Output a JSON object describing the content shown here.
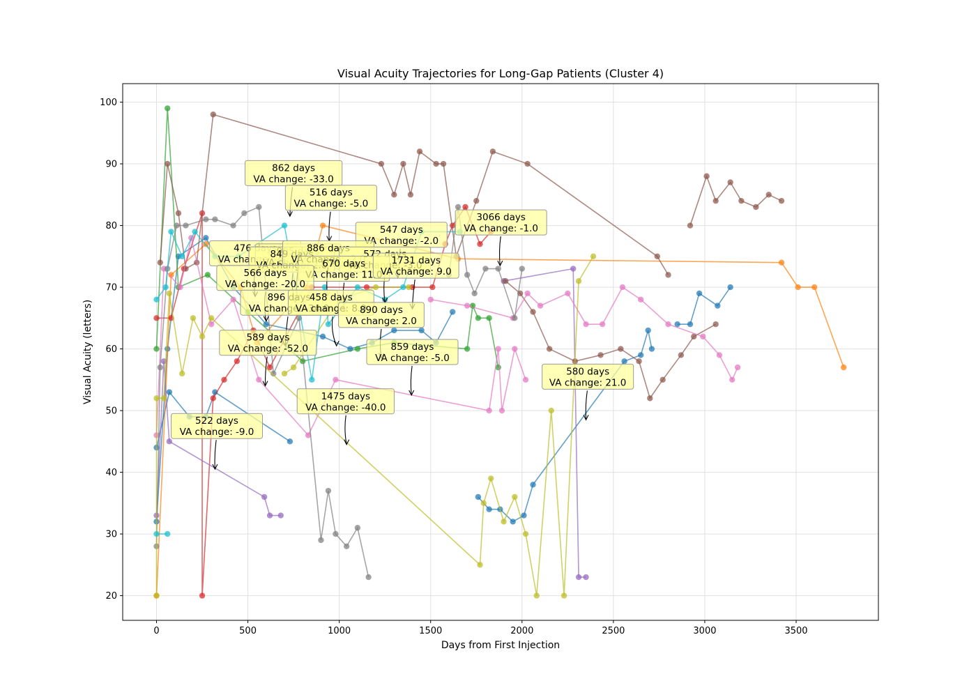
{
  "chart_data": {
    "type": "line",
    "title": "Visual Acuity Trajectories for Long-Gap Patients (Cluster 4)",
    "xlabel": "Days from First Injection",
    "ylabel": "Visual Acuity (letters)",
    "xlim": [
      -185,
      3950
    ],
    "ylim": [
      16,
      103
    ],
    "x_ticks": [
      0,
      500,
      1000,
      1500,
      2000,
      2500,
      3000,
      3500
    ],
    "y_ticks": [
      20,
      30,
      40,
      50,
      60,
      70,
      80,
      90,
      100
    ],
    "grid": true,
    "colors": [
      "#1f77b4",
      "#ff7f0e",
      "#2ca02c",
      "#d62728",
      "#9467bd",
      "#8c564b",
      "#e377c2",
      "#7f7f7f",
      "#bcbd22",
      "#17becf"
    ],
    "annotation_style": {
      "box_fill": "#ffff99",
      "box_stroke": "#999999"
    },
    "series": [
      {
        "color": "#1f77b4",
        "points": [
          [
            0,
            44
          ],
          [
            70,
            53
          ],
          [
            180,
            49
          ],
          [
            270,
            49
          ],
          [
            320,
            53
          ],
          [
            730,
            45
          ]
        ]
      },
      {
        "color": "#1f77b4",
        "points": [
          [
            0,
            32
          ],
          [
            60,
            60
          ],
          [
            120,
            75
          ],
          [
            270,
            78
          ],
          [
            420,
            70
          ],
          [
            600,
            64
          ],
          [
            910,
            62
          ],
          [
            1060,
            60
          ],
          [
            1180,
            61
          ],
          [
            1300,
            63
          ],
          [
            1450,
            63
          ],
          [
            1530,
            61
          ],
          [
            1620,
            66
          ]
        ]
      },
      {
        "color": "#1f77b4",
        "points": [
          [
            1760,
            36
          ],
          [
            1820,
            34
          ],
          [
            1880,
            34
          ],
          [
            1950,
            32
          ],
          [
            2010,
            33
          ],
          [
            2060,
            38
          ],
          [
            2560,
            58
          ],
          [
            2650,
            59
          ],
          [
            2690,
            63
          ],
          [
            2710,
            60
          ]
        ]
      },
      {
        "color": "#1f77b4",
        "points": [
          [
            2850,
            64
          ],
          [
            2920,
            64
          ],
          [
            2970,
            69
          ],
          [
            3070,
            67
          ],
          [
            3140,
            70
          ]
        ]
      },
      {
        "color": "#ff7f0e",
        "points": [
          [
            0,
            20
          ],
          [
            80,
            72
          ],
          [
            270,
            77
          ],
          [
            460,
            70
          ],
          [
            550,
            61
          ],
          [
            820,
            70
          ],
          [
            910,
            80
          ],
          [
            1650,
            74.6
          ],
          [
            3420,
            74
          ],
          [
            3510,
            70
          ],
          [
            3600,
            70
          ],
          [
            3760,
            57
          ]
        ]
      },
      {
        "color": "#2ca02c",
        "points": [
          [
            0,
            60
          ],
          [
            60,
            99
          ],
          [
            120,
            70
          ],
          [
            280,
            72
          ],
          [
            500,
            66
          ],
          [
            800,
            58
          ],
          [
            1100,
            60
          ],
          [
            1300,
            61
          ],
          [
            1700,
            60
          ],
          [
            1730,
            67
          ],
          [
            1760,
            65
          ],
          [
            1820,
            65
          ],
          [
            1870,
            57
          ]
        ]
      },
      {
        "color": "#d62728",
        "points": [
          [
            0,
            65
          ],
          [
            80,
            65
          ],
          [
            150,
            73
          ],
          [
            250,
            82
          ],
          [
            250,
            20
          ],
          [
            310,
            52
          ],
          [
            370,
            55
          ],
          [
            440,
            58
          ],
          [
            530,
            63
          ],
          [
            620,
            57
          ],
          [
            850,
            70
          ],
          [
            1150,
            70
          ],
          [
            1400,
            70
          ],
          [
            1510,
            70
          ],
          [
            1580,
            77
          ],
          [
            1620,
            80
          ],
          [
            1690,
            83
          ],
          [
            1770,
            77
          ],
          [
            1830,
            79
          ]
        ]
      },
      {
        "color": "#9467bd",
        "points": [
          [
            0,
            33
          ],
          [
            40,
            58
          ],
          [
            70,
            45
          ],
          [
            590,
            36
          ],
          [
            620,
            33
          ],
          [
            680,
            33
          ]
        ]
      },
      {
        "color": "#9467bd",
        "points": [
          [
            1900,
            71
          ],
          [
            2280,
            73
          ],
          [
            2310,
            23
          ],
          [
            2350,
            23
          ]
        ]
      },
      {
        "color": "#8c564b",
        "points": [
          [
            20,
            74
          ],
          [
            60,
            90
          ],
          [
            120,
            82
          ],
          [
            160,
            73
          ],
          [
            220,
            74
          ],
          [
            310,
            98
          ],
          [
            1230,
            90
          ],
          [
            1300,
            85
          ],
          [
            1350,
            90
          ],
          [
            1390,
            85
          ],
          [
            1440,
            92
          ],
          [
            1530,
            90
          ],
          [
            1570,
            90
          ],
          [
            1640,
            75
          ],
          [
            1750,
            84
          ],
          [
            1840,
            92
          ],
          [
            2030,
            90
          ],
          [
            2740,
            75
          ],
          [
            2800,
            72
          ]
        ]
      },
      {
        "color": "#8c564b",
        "points": [
          [
            1910,
            71
          ],
          [
            1990,
            69
          ],
          [
            2060,
            66
          ],
          [
            2150,
            60
          ],
          [
            2290,
            58
          ],
          [
            2430,
            59
          ],
          [
            2540,
            60
          ],
          [
            2640,
            58
          ],
          [
            2700,
            52
          ],
          [
            2770,
            55
          ],
          [
            2870,
            59
          ],
          [
            2940,
            62
          ],
          [
            3060,
            64
          ]
        ]
      },
      {
        "color": "#8c564b",
        "points": [
          [
            2920,
            80
          ],
          [
            3010,
            88
          ],
          [
            3060,
            84
          ],
          [
            3140,
            87
          ],
          [
            3200,
            84
          ],
          [
            3280,
            83
          ],
          [
            3350,
            85
          ],
          [
            3420,
            84
          ]
        ]
      },
      {
        "color": "#e377c2",
        "points": [
          [
            0,
            46
          ],
          [
            40,
            73
          ],
          [
            130,
            70
          ],
          [
            190,
            78
          ],
          [
            300,
            64
          ],
          [
            420,
            68
          ],
          [
            560,
            55
          ],
          [
            830,
            46
          ],
          [
            980,
            55
          ],
          [
            1820,
            50
          ],
          [
            1870,
            60
          ],
          [
            1890,
            50
          ],
          [
            1960,
            60
          ],
          [
            2020,
            55
          ]
        ]
      },
      {
        "color": "#e377c2",
        "points": [
          [
            1500,
            68
          ],
          [
            1700,
            67
          ],
          [
            1950,
            65
          ],
          [
            2030,
            69
          ],
          [
            2100,
            67
          ],
          [
            2250,
            69
          ],
          [
            2350,
            64
          ],
          [
            2440,
            64
          ],
          [
            2550,
            70
          ],
          [
            2650,
            68
          ],
          [
            2800,
            64
          ],
          [
            2990,
            62
          ],
          [
            3080,
            59
          ],
          [
            3150,
            55
          ],
          [
            3180,
            57
          ]
        ]
      },
      {
        "color": "#7f7f7f",
        "points": [
          [
            0,
            28
          ],
          [
            20,
            57
          ],
          [
            60,
            73
          ],
          [
            110,
            80
          ],
          [
            160,
            80
          ],
          [
            270,
            81
          ],
          [
            320,
            81
          ],
          [
            420,
            80
          ],
          [
            480,
            82
          ],
          [
            560,
            83
          ],
          [
            640,
            56
          ],
          [
            780,
            65
          ],
          [
            900,
            29
          ],
          [
            940,
            37
          ],
          [
            980,
            30
          ],
          [
            1040,
            28
          ],
          [
            1100,
            31
          ],
          [
            1160,
            23
          ]
        ]
      },
      {
        "color": "#7f7f7f",
        "points": [
          [
            1600,
            72
          ],
          [
            1650,
            83
          ],
          [
            1700,
            72
          ],
          [
            1740,
            69
          ],
          [
            1800,
            73
          ],
          [
            1870,
            73
          ],
          [
            1960,
            65
          ],
          [
            2000,
            73
          ]
        ]
      },
      {
        "color": "#bcbd22",
        "points": [
          [
            0,
            20
          ],
          [
            0,
            52
          ],
          [
            40,
            52
          ],
          [
            70,
            69
          ],
          [
            140,
            56
          ],
          [
            200,
            65
          ],
          [
            250,
            62
          ],
          [
            300,
            65
          ],
          [
            1770,
            25
          ],
          [
            1790,
            35
          ],
          [
            1830,
            39
          ],
          [
            1900,
            32
          ],
          [
            1960,
            36
          ],
          [
            2020,
            30
          ],
          [
            2080,
            20
          ],
          [
            2160,
            50
          ],
          [
            2230,
            20
          ],
          [
            2310,
            71
          ],
          [
            2390,
            75
          ]
        ]
      },
      {
        "color": "#bcbd22",
        "points": [
          [
            700,
            56
          ],
          [
            750,
            57
          ],
          [
            1000,
            68
          ],
          [
            1200,
            70
          ],
          [
            1380,
            70
          ]
        ]
      },
      {
        "color": "#17becf",
        "points": [
          [
            0,
            30
          ],
          [
            60,
            30
          ]
        ]
      },
      {
        "color": "#17becf",
        "points": [
          [
            0,
            68
          ],
          [
            50,
            70
          ],
          [
            80,
            79
          ],
          [
            140,
            75
          ],
          [
            210,
            79
          ],
          [
            320,
            75
          ],
          [
            450,
            75
          ],
          [
            700,
            80
          ],
          [
            850,
            55
          ],
          [
            920,
            70
          ],
          [
            940,
            64
          ],
          [
            1100,
            70
          ],
          [
            1250,
            68
          ],
          [
            1350,
            70
          ],
          [
            1450,
            79
          ],
          [
            1660,
            79
          ]
        ]
      }
    ],
    "annotations": [
      {
        "text": [
          "862 days",
          "VA change: -33.0"
        ],
        "box_center": [
          750,
          88.5
        ],
        "arrow_tip": [
          730,
          81.5
        ]
      },
      {
        "text": [
          "516 days",
          "VA change: -5.0"
        ],
        "box_center": [
          955,
          84.5
        ],
        "arrow_tip": [
          945,
          77.5
        ]
      },
      {
        "text": [
          "547 days",
          "VA change: -2.0"
        ],
        "box_center": [
          1340,
          78.5
        ],
        "arrow_tip": [
          1320,
          71.5
        ]
      },
      {
        "text": [
          "3066 days",
          "VA change: -1.0"
        ],
        "box_center": [
          1885,
          80.5
        ],
        "arrow_tip": [
          1880,
          73.5
        ]
      },
      {
        "text": [
          "476 days",
          "VA change: -4.0"
        ],
        "box_center": [
          540,
          75.5
        ],
        "arrow_tip": [
          540,
          68.5
        ]
      },
      {
        "text": [
          "905 days",
          "VA change: 2.0"
        ],
        "box_center": [
          775,
          75.0
        ],
        "arrow_tip": [
          770,
          68.0
        ]
      },
      {
        "text": [
          "849 days",
          "VA change: 2.0"
        ],
        "box_center": [
          740,
          74.5
        ],
        "arrow_tip": [
          760,
          67.5
        ]
      },
      {
        "text": [
          "886 days",
          "VA change: -2.0"
        ],
        "box_center": [
          940,
          75.5
        ],
        "arrow_tip": [
          935,
          68.5
        ]
      },
      {
        "text": [
          "572 days",
          "VA change: -3.0"
        ],
        "box_center": [
          1250,
          74.5
        ],
        "arrow_tip": [
          1250,
          67.5
        ]
      },
      {
        "text": [
          "670 days",
          "VA change: 11.0"
        ],
        "box_center": [
          1025,
          73.0
        ],
        "arrow_tip": [
          1030,
          66.0
        ]
      },
      {
        "text": [
          "1731 days",
          "VA change: 9.0"
        ],
        "box_center": [
          1420,
          73.5
        ],
        "arrow_tip": [
          1400,
          66.5
        ]
      },
      {
        "text": [
          "566 days",
          "VA change: -20.0"
        ],
        "box_center": [
          595,
          71.5
        ],
        "arrow_tip": [
          600,
          64.5
        ]
      },
      {
        "text": [
          "896 days",
          "VA change: -34.0"
        ],
        "box_center": [
          725,
          67.5
        ],
        "arrow_tip": [
          705,
          60.5
        ]
      },
      {
        "text": [
          "458 days",
          "VA change: 8.0"
        ],
        "box_center": [
          955,
          67.5
        ],
        "arrow_tip": [
          985,
          60.5
        ]
      },
      {
        "text": [
          "890 days",
          "VA change: 2.0"
        ],
        "box_center": [
          1230,
          65.5
        ],
        "arrow_tip": [
          1230,
          58.5
        ]
      },
      {
        "text": [
          "589 days",
          "VA change: -52.0"
        ],
        "box_center": [
          610,
          61.0
        ],
        "arrow_tip": [
          595,
          54.0
        ]
      },
      {
        "text": [
          "859 days",
          "VA change: -5.0"
        ],
        "box_center": [
          1400,
          59.5
        ],
        "arrow_tip": [
          1395,
          52.5
        ]
      },
      {
        "text": [
          "580 days",
          "VA change: 21.0"
        ],
        "box_center": [
          2360,
          55.5
        ],
        "arrow_tip": [
          2350,
          48.5
        ]
      },
      {
        "text": [
          "1475 days",
          "VA change: -40.0"
        ],
        "box_center": [
          1035,
          51.5
        ],
        "arrow_tip": [
          1040,
          44.5
        ]
      },
      {
        "text": [
          "522 days",
          "VA change: -9.0"
        ],
        "box_center": [
          330,
          47.5
        ],
        "arrow_tip": [
          320,
          40.5
        ]
      }
    ]
  }
}
